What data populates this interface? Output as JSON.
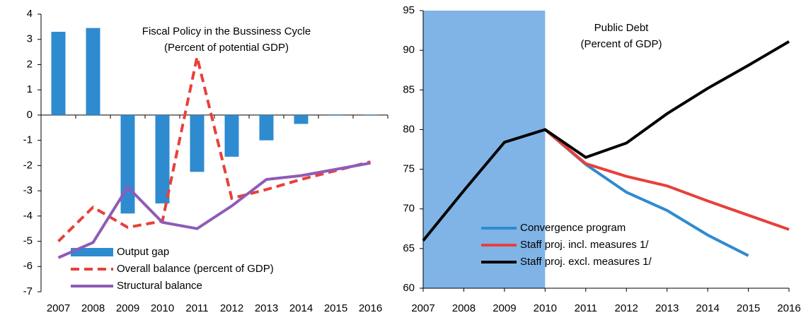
{
  "chart_data": [
    {
      "type": "combo",
      "title": "Fiscal Policy in the Bussiness Cycle",
      "subtitle": "(Percent of potential GDP)",
      "categories": [
        "2007",
        "2008",
        "2009",
        "2010",
        "2011",
        "2012",
        "2013",
        "2014",
        "2015",
        "2016"
      ],
      "series": [
        {
          "name": "Output gap",
          "kind": "bar",
          "color": "#2e8bd0",
          "values": [
            3.3,
            3.45,
            -3.9,
            -3.5,
            -2.25,
            -1.65,
            -1.0,
            -0.35,
            -0.02,
            0.02
          ]
        },
        {
          "name": "Overall balance (percent of GDP)",
          "kind": "line",
          "style": "dashed",
          "color": "#e8403a",
          "values": [
            -5.0,
            -3.65,
            -4.45,
            -4.2,
            2.3,
            -3.3,
            -2.95,
            -2.55,
            -2.2,
            -1.85
          ]
        },
        {
          "name": "Structural balance",
          "kind": "line",
          "style": "solid",
          "color": "#8e5bb8",
          "values": [
            -5.65,
            -5.05,
            -2.85,
            -4.25,
            -4.5,
            -3.6,
            -2.55,
            -2.4,
            -2.15,
            -1.9
          ]
        }
      ],
      "ylim": [
        -7,
        4
      ],
      "yticks": [
        -7,
        -6,
        -5,
        -4,
        -3,
        -2,
        -1,
        0,
        1,
        2,
        3,
        4
      ],
      "legend": "lower-left"
    },
    {
      "type": "line",
      "title": "Public Debt",
      "subtitle": "(Percent of GDP)",
      "categories": [
        "2007",
        "2008",
        "2009",
        "2010",
        "2011",
        "2012",
        "2013",
        "2014",
        "2015",
        "2016"
      ],
      "highlight": {
        "from": "2007",
        "to": "2010",
        "color": "#80b4e6"
      },
      "series": [
        {
          "name": "Convergence program",
          "color": "#2e8bd0",
          "values": [
            null,
            null,
            null,
            80,
            75.6,
            72.1,
            69.8,
            66.7,
            64.1,
            null
          ]
        },
        {
          "name": "Staff proj. incl. measures 1/",
          "color": "#e8403a",
          "values": [
            null,
            null,
            null,
            80,
            75.7,
            74.1,
            72.9,
            71.0,
            69.2,
            67.4
          ]
        },
        {
          "name": "Staff proj. excl. measures 1/",
          "color": "#000000",
          "values": [
            66,
            72.3,
            78.4,
            80,
            76.5,
            78.3,
            82,
            85.2,
            88.1,
            91.1
          ]
        }
      ],
      "ylim": [
        60,
        95
      ],
      "yticks": [
        60,
        65,
        70,
        75,
        80,
        85,
        90,
        95
      ],
      "legend": "lower-left"
    }
  ]
}
